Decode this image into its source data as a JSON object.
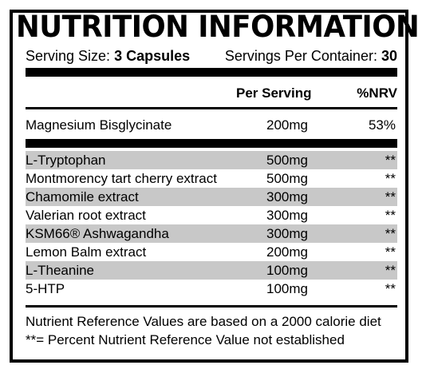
{
  "label": {
    "title": "NUTRITION INFORMATION",
    "serving_size_label": "Serving Size:",
    "serving_size_value": "3 Capsules",
    "servings_per_container_label": "Servings Per Container:",
    "servings_per_container_value": "30",
    "columns": {
      "per_serving": "Per Serving",
      "nrv": "%NRV"
    },
    "main_nutrient": {
      "name": "Magnesium Bisglycinate",
      "amount": "200mg",
      "nrv": "53%"
    },
    "ingredients": [
      {
        "name": "L-Tryptophan",
        "amount": "500mg",
        "nrv": "**"
      },
      {
        "name": "Montmorency tart cherry extract",
        "amount": "500mg",
        "nrv": "**"
      },
      {
        "name": "Chamomile extract",
        "amount": "300mg",
        "nrv": "**"
      },
      {
        "name": "Valerian root extract",
        "amount": "300mg",
        "nrv": "**"
      },
      {
        "name": "KSM66® Ashwagandha",
        "amount": "300mg",
        "nrv": "**"
      },
      {
        "name": "Lemon Balm extract",
        "amount": "200mg",
        "nrv": "**"
      },
      {
        "name": "L-Theanine",
        "amount": "100mg",
        "nrv": "**"
      },
      {
        "name": "5-HTP",
        "amount": "100mg",
        "nrv": "**"
      }
    ],
    "footnotes": [
      "Nutrient Reference Values are based on a 2000 calorie diet",
      "**= Percent Nutrient Reference Value not established"
    ]
  },
  "colors": {
    "text": "#000000",
    "border": "#000000",
    "shaded_row": "#c8c8c8",
    "background": "#ffffff"
  }
}
